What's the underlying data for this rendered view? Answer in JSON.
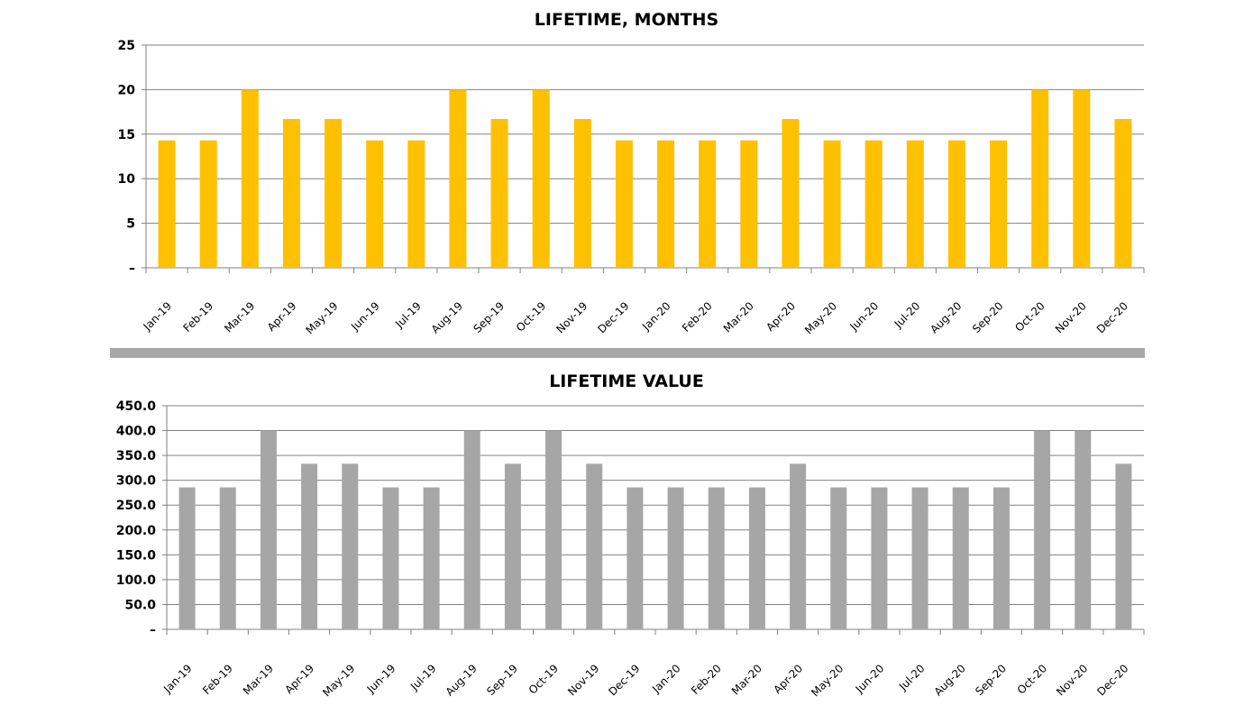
{
  "chart_data": [
    {
      "type": "bar",
      "title": "LIFETIME, MONTHS",
      "xlabel": "",
      "ylabel": "",
      "ylim": [
        0,
        25
      ],
      "yticks": [
        "–",
        "5",
        "10",
        "15",
        "20",
        "25"
      ],
      "ytick_values": [
        0,
        5,
        10,
        15,
        20,
        25
      ],
      "grid": true,
      "color": "#FFC000",
      "categories": [
        "Jan-19",
        "Feb-19",
        "Mar-19",
        "Apr-19",
        "May-19",
        "Jun-19",
        "Jul-19",
        "Aug-19",
        "Sep-19",
        "Oct-19",
        "Nov-19",
        "Dec-19",
        "Jan-20",
        "Feb-20",
        "Mar-20",
        "Apr-20",
        "May-20",
        "Jun-20",
        "Jul-20",
        "Aug-20",
        "Sep-20",
        "Oct-20",
        "Nov-20",
        "Dec-20"
      ],
      "values": [
        14.3,
        14.3,
        20,
        16.7,
        16.7,
        14.3,
        14.3,
        20,
        16.7,
        20,
        16.7,
        14.3,
        14.3,
        14.3,
        14.3,
        16.7,
        14.3,
        14.3,
        14.3,
        14.3,
        14.3,
        20,
        20,
        16.7
      ]
    },
    {
      "type": "bar",
      "title": "LIFETIME VALUE",
      "xlabel": "",
      "ylabel": "",
      "ylim": [
        0,
        450
      ],
      "yticks": [
        "–",
        "50.0",
        "100.0",
        "150.0",
        "200.0",
        "250.0",
        "300.0",
        "350.0",
        "400.0",
        "450.0"
      ],
      "ytick_values": [
        0,
        50,
        100,
        150,
        200,
        250,
        300,
        350,
        400,
        450
      ],
      "grid": true,
      "color": "#A6A6A6",
      "categories": [
        "Jan-19",
        "Feb-19",
        "Mar-19",
        "Apr-19",
        "May-19",
        "Jun-19",
        "Jul-19",
        "Aug-19",
        "Sep-19",
        "Oct-19",
        "Nov-19",
        "Dec-19",
        "Jan-20",
        "Feb-20",
        "Mar-20",
        "Apr-20",
        "May-20",
        "Jun-20",
        "Jul-20",
        "Aug-20",
        "Sep-20",
        "Oct-20",
        "Nov-20",
        "Dec-20"
      ],
      "values": [
        285.7,
        285.7,
        400,
        333.3,
        333.3,
        285.7,
        285.7,
        400,
        333.3,
        400,
        333.3,
        285.7,
        285.7,
        285.7,
        285.7,
        333.3,
        285.7,
        285.7,
        285.7,
        285.7,
        285.7,
        400,
        400,
        333.3
      ]
    }
  ]
}
